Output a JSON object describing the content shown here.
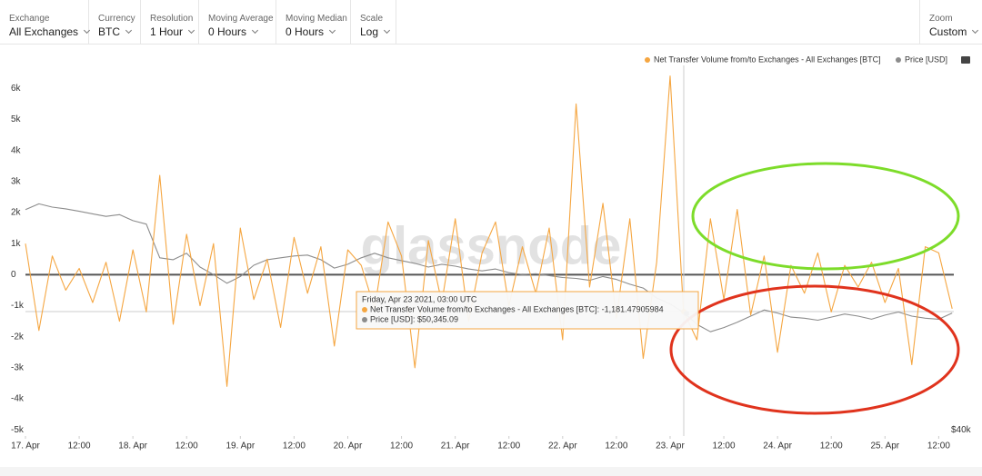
{
  "toolbar": [
    {
      "label": "Exchange",
      "value": "All Exchanges"
    },
    {
      "label": "Currency",
      "value": "BTC"
    },
    {
      "label": "Resolution",
      "value": "1 Hour"
    },
    {
      "label": "Moving Average",
      "value": "0 Hours"
    },
    {
      "label": "Moving Median",
      "value": "0 Hours"
    },
    {
      "label": "Scale",
      "value": "Log"
    },
    {
      "label": "Zoom",
      "value": "Custom"
    }
  ],
  "chart_data": {
    "type": "line",
    "watermark": "glassnode",
    "tooltip": {
      "title": "Friday, Apr 23 2021, 03:00 UTC",
      "lines": [
        "Net Transfer Volume from/to Exchanges - All Exchanges [BTC]: -1,181.47905984",
        "Price [USD]: $50,345.09"
      ]
    },
    "x": [
      0,
      3,
      6,
      9,
      12,
      15,
      18,
      21,
      24,
      27,
      30,
      33,
      36,
      39,
      42,
      45,
      48,
      51,
      54,
      57,
      60,
      63,
      66,
      69,
      72,
      75,
      78,
      81,
      84,
      87,
      90,
      93,
      96,
      99,
      102,
      105,
      108,
      111,
      114,
      117,
      120,
      123,
      126,
      129,
      132,
      135,
      138,
      141,
      144,
      147,
      150,
      153,
      156,
      159,
      162,
      165,
      168,
      171,
      174,
      177,
      180,
      183,
      186,
      189,
      192,
      195,
      198,
      201,
      204,
      207
    ],
    "xlim": [
      0,
      209
    ],
    "xticks": [
      {
        "value": 0,
        "label": "17. Apr"
      },
      {
        "value": 12,
        "label": "12:00"
      },
      {
        "value": 24,
        "label": "18. Apr"
      },
      {
        "value": 36,
        "label": "12:00"
      },
      {
        "value": 48,
        "label": "19. Apr"
      },
      {
        "value": 60,
        "label": "12:00"
      },
      {
        "value": 72,
        "label": "20. Apr"
      },
      {
        "value": 84,
        "label": "12:00"
      },
      {
        "value": 96,
        "label": "21. Apr"
      },
      {
        "value": 108,
        "label": "12:00"
      },
      {
        "value": 120,
        "label": "22. Apr"
      },
      {
        "value": 132,
        "label": "12:00"
      },
      {
        "value": 144,
        "label": "23. Apr"
      },
      {
        "value": 156,
        "label": "12:00"
      },
      {
        "value": 168,
        "label": "24. Apr"
      },
      {
        "value": 180,
        "label": "12:00"
      },
      {
        "value": 192,
        "label": "25. Apr"
      },
      {
        "value": 204,
        "label": "12:00"
      }
    ],
    "ylim": [
      -5200,
      6800
    ],
    "yticks": [
      {
        "value": 6000,
        "label": "6k"
      },
      {
        "value": 5000,
        "label": "5k"
      },
      {
        "value": 4000,
        "label": "4k"
      },
      {
        "value": 3000,
        "label": "3k"
      },
      {
        "value": 2000,
        "label": "2k"
      },
      {
        "value": 1000,
        "label": "1k"
      },
      0,
      {
        "value": -1000,
        "label": "-1k"
      },
      {
        "value": -2000,
        "label": "-2k"
      },
      {
        "value": -3000,
        "label": "-3k"
      },
      {
        "value": -4000,
        "label": "-4k"
      },
      {
        "value": -5000,
        "label": "-5k"
      }
    ],
    "y2lim": [
      39600,
      81700
    ],
    "y2ticks": [
      {
        "value": 40000,
        "label": "$40k"
      }
    ],
    "y2_log": true,
    "grid": false,
    "legend": "top-right",
    "series": [
      {
        "name": "Net Transfer Volume from/to Exchanges - All Exchanges [BTC]",
        "color": "#f5a641",
        "values": [
          1000,
          -1800,
          600,
          -500,
          200,
          -900,
          400,
          -1500,
          800,
          -1200,
          3200,
          -1600,
          1300,
          -1000,
          1000,
          -3600,
          1500,
          -800,
          500,
          -1700,
          1200,
          -600,
          900,
          -2300,
          800,
          300,
          -1100,
          1700,
          600,
          -3000,
          1100,
          -900,
          1800,
          -1500,
          700,
          1700,
          -1000,
          900,
          -600,
          1500,
          -2100,
          5500,
          -400,
          2300,
          -1400,
          1800,
          -2700,
          400,
          6400,
          -1181.47905984,
          -2100,
          1800,
          -800,
          2100,
          -1300,
          600,
          -2500,
          300,
          -600,
          700,
          -1200,
          300,
          -400,
          400,
          -900,
          200,
          -2900,
          900,
          700,
          -1100
        ]
      },
      {
        "name": "Price [USD]",
        "color": "#8c8c8c",
        "axis": "y2",
        "values": [
          61500,
          62200,
          61800,
          61600,
          61300,
          61000,
          60700,
          60900,
          60200,
          59800,
          56000,
          55800,
          56500,
          55000,
          54200,
          53300,
          54000,
          55200,
          55800,
          56000,
          56200,
          56300,
          55800,
          54900,
          55300,
          56000,
          56500,
          56000,
          55700,
          55400,
          55000,
          55300,
          55100,
          54800,
          54600,
          54800,
          54400,
          54200,
          54300,
          54100,
          53900,
          53800,
          53600,
          54000,
          53700,
          53200,
          52800,
          51800,
          51200,
          50345.09,
          49200,
          48500,
          48900,
          49400,
          50000,
          50600,
          50300,
          49900,
          49800,
          49600,
          49900,
          50200,
          50000,
          49700,
          50100,
          50400,
          50000,
          49800,
          49700,
          50300
        ]
      }
    ]
  }
}
